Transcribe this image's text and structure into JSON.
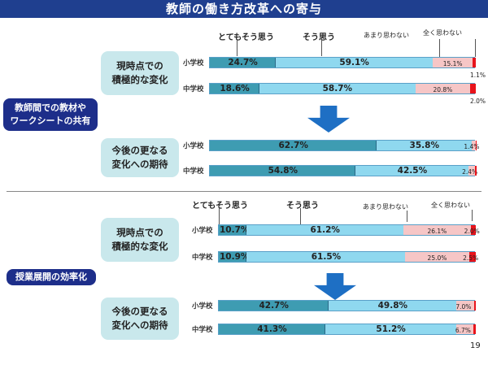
{
  "title": "教師の働き方改革への寄与",
  "page_number": "19",
  "colors": {
    "strongly_agree": "#3e9cb2",
    "agree": "#8fd8ef",
    "somewhat_disagree": "#f6c6c6",
    "strongly_disagree": "#e8141c",
    "title_bar": "#1f3f8f"
  },
  "legend": {
    "strongly_agree": "とてもそう思う",
    "agree": "そう思う",
    "somewhat_disagree": "あまり思わない",
    "strongly_disagree": "全く思わない"
  },
  "sections": [
    {
      "label": "教師間での教材や\nワークシートの共有",
      "groups": [
        {
          "label": "現時点での\n積極的な変化",
          "rows": [
            {
              "category": "小学校",
              "values": [
                24.7,
                59.1,
                15.1,
                1.1
              ],
              "labels": [
                "24.7%",
                "59.1%",
                "15.1%",
                "1.1%"
              ]
            },
            {
              "category": "中学校",
              "values": [
                18.6,
                58.7,
                20.8,
                2.0
              ],
              "labels": [
                "18.6%",
                "58.7%",
                "20.8%",
                "2.0%"
              ]
            }
          ]
        },
        {
          "label": "今後の更なる\n変化への期待",
          "rows": [
            {
              "category": "小学校",
              "values": [
                62.7,
                35.8,
                1.4,
                0.1
              ],
              "labels": [
                "62.7%",
                "35.8%",
                "1.4%",
                ""
              ]
            },
            {
              "category": "中学校",
              "values": [
                54.8,
                42.5,
                2.4,
                0.3
              ],
              "labels": [
                "54.8%",
                "42.5%",
                "2.4%",
                ""
              ]
            }
          ]
        }
      ]
    },
    {
      "label": "授業展開の効率化",
      "groups": [
        {
          "label": "現時点での\n積極的な変化",
          "rows": [
            {
              "category": "小学校",
              "values": [
                10.7,
                61.2,
                26.1,
                2.0
              ],
              "labels": [
                "10.7%",
                "61.2%",
                "26.1%",
                "2.0%"
              ]
            },
            {
              "category": "中学校",
              "values": [
                10.9,
                61.5,
                25.0,
                2.5
              ],
              "labels": [
                "10.9%",
                "61.5%",
                "25.0%",
                "2.5%"
              ]
            }
          ]
        },
        {
          "label": "今後の更なる\n変化への期待",
          "rows": [
            {
              "category": "小学校",
              "values": [
                42.7,
                49.8,
                7.0,
                0.5
              ],
              "labels": [
                "42.7%",
                "49.8%",
                "7.0%",
                ""
              ]
            },
            {
              "category": "中学校",
              "values": [
                41.3,
                51.2,
                6.7,
                0.8
              ],
              "labels": [
                "41.3%",
                "51.2%",
                "6.7%",
                ""
              ]
            }
          ]
        }
      ]
    }
  ],
  "chart_data": [
    {
      "type": "bar",
      "stacked": true,
      "orientation": "horizontal",
      "title": "教師間での教材やワークシートの共有",
      "categories": [
        "現時点での積極的な変化 小学校",
        "現時点での積極的な変化 中学校",
        "今後の更なる変化への期待 小学校",
        "今後の更なる変化への期待 中学校"
      ],
      "series": [
        {
          "name": "とてもそう思う",
          "values": [
            24.7,
            18.6,
            62.7,
            54.8
          ]
        },
        {
          "name": "そう思う",
          "values": [
            59.1,
            58.7,
            35.8,
            42.5
          ]
        },
        {
          "name": "あまり思わない",
          "values": [
            15.1,
            20.8,
            1.4,
            2.4
          ]
        },
        {
          "name": "全く思わない",
          "values": [
            1.1,
            2.0,
            0.1,
            0.3
          ]
        }
      ],
      "xlim": [
        0,
        100
      ]
    },
    {
      "type": "bar",
      "stacked": true,
      "orientation": "horizontal",
      "title": "授業展開の効率化",
      "categories": [
        "現時点での積極的な変化 小学校",
        "現時点での積極的な変化 中学校",
        "今後の更なる変化への期待 小学校",
        "今後の更なる変化への期待 中学校"
      ],
      "series": [
        {
          "name": "とてもそう思う",
          "values": [
            10.7,
            10.9,
            42.7,
            41.3
          ]
        },
        {
          "name": "そう思う",
          "values": [
            61.2,
            61.5,
            49.8,
            51.2
          ]
        },
        {
          "name": "あまり思わない",
          "values": [
            26.1,
            25.0,
            7.0,
            6.7
          ]
        },
        {
          "name": "全く思わない",
          "values": [
            2.0,
            2.5,
            0.5,
            0.8
          ]
        }
      ],
      "xlim": [
        0,
        100
      ]
    }
  ]
}
